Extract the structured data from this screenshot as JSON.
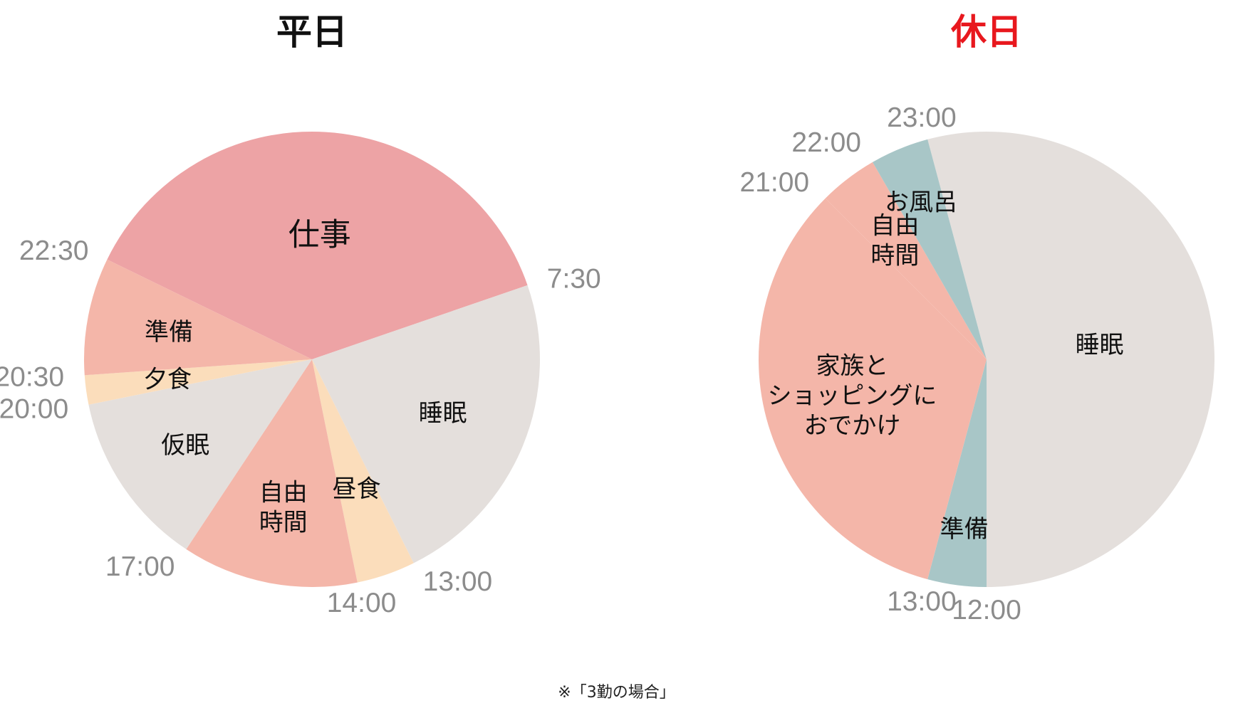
{
  "colors": {
    "sleep": "#E4DFDC",
    "work": "#EDA3A5",
    "leisure": "#F4B6A9",
    "meal": "#FBDDBB",
    "bath": "#A8C6C7",
    "title_weekday": "#111111",
    "title_holiday": "#E8181E",
    "tick": "#8C8C8C"
  },
  "footnote": "※「3勤の場合」",
  "chart_data": [
    {
      "type": "pie",
      "title": "平日",
      "start_angle_note": "clockwise from top",
      "slices": [
        {
          "label": "仕事",
          "value": 9,
          "color": "work",
          "start_time": "22:30",
          "end_time": "7:30"
        },
        {
          "label": "睡眠",
          "value": 5.5,
          "color": "sleep",
          "start_time": "7:30",
          "end_time": "13:00"
        },
        {
          "label": "昼食",
          "value": 1,
          "color": "meal",
          "start_time": "13:00",
          "end_time": "14:00"
        },
        {
          "label": "自由\n時間",
          "value": 3,
          "color": "leisure",
          "start_time": "14:00",
          "end_time": "17:00"
        },
        {
          "label": "仮眠",
          "value": 3,
          "color": "sleep",
          "start_time": "17:00",
          "end_time": "20:00"
        },
        {
          "label": "夕食",
          "value": 0.5,
          "color": "meal",
          "start_time": "20:00",
          "end_time": "20:30"
        },
        {
          "label": "準備",
          "value": 2,
          "color": "leisure",
          "start_time": "20:30",
          "end_time": "22:30"
        }
      ],
      "time_labels": [
        "22:30",
        "7:30",
        "13:00",
        "14:00",
        "17:00",
        "20:00",
        "20:30"
      ]
    },
    {
      "type": "pie",
      "title": "休日",
      "slices": [
        {
          "label": "睡眠",
          "value": 13,
          "color": "sleep",
          "start_time": "23:00",
          "end_time": "12:00"
        },
        {
          "label": "準備",
          "value": 1,
          "color": "bath",
          "start_time": "12:00",
          "end_time": "13:00"
        },
        {
          "label": "家族と\nショッピングに\nおでかけ",
          "value": 8,
          "color": "leisure",
          "start_time": "13:00",
          "end_time": "21:00"
        },
        {
          "label": "自由\n時間",
          "value": 1,
          "color": "leisure",
          "start_time": "21:00",
          "end_time": "22:00"
        },
        {
          "label": "お風呂",
          "value": 1,
          "color": "bath",
          "start_time": "22:00",
          "end_time": "23:00"
        }
      ],
      "time_labels": [
        "23:00",
        "12:00",
        "13:00",
        "21:00",
        "22:00"
      ]
    }
  ]
}
